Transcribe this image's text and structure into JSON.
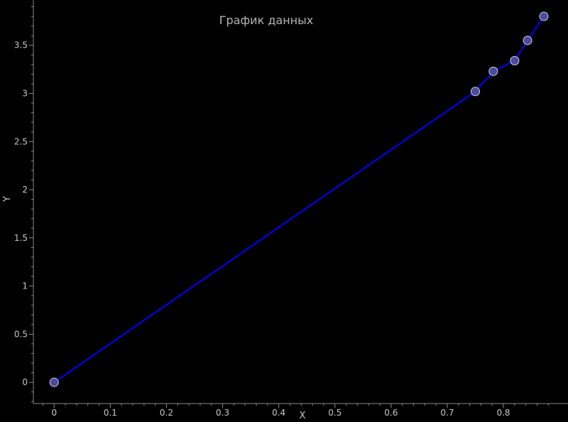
{
  "chart_data": {
    "type": "line",
    "title": "График данных",
    "xlabel": "X",
    "ylabel": "Y",
    "xlim": [
      -0.037,
      0.915
    ],
    "ylim": [
      -0.22,
      3.97
    ],
    "grid": false,
    "x_ticks": [
      0,
      0.1,
      0.2,
      0.3,
      0.4,
      0.5,
      0.6,
      0.7,
      0.8
    ],
    "x_tick_labels": [
      "0",
      "0.1",
      "0.2",
      "0.3",
      "0.4",
      "0.5",
      "0.6",
      "0.7",
      "0.8"
    ],
    "y_ticks": [
      0,
      0.5,
      1,
      1.5,
      2,
      2.5,
      3,
      3.5
    ],
    "y_tick_labels": [
      "0",
      "0.5",
      "1",
      "1.5",
      "2",
      "2.5",
      "3",
      "3.5"
    ],
    "line_color": "#0000ff",
    "marker_fill": "#4b4ba0",
    "marker_edge": "#d0d0e0",
    "series": [
      {
        "x": [
          0,
          0.75,
          0.782,
          0.82,
          0.843,
          0.872
        ],
        "y": [
          0,
          3.02,
          3.23,
          3.34,
          3.55,
          3.8
        ]
      }
    ]
  }
}
